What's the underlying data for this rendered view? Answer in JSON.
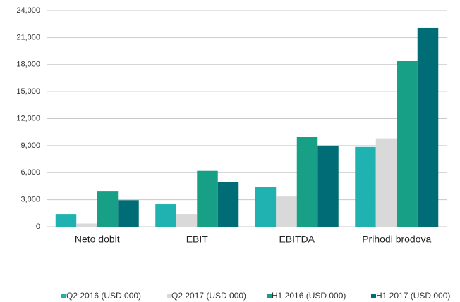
{
  "chart_data": {
    "type": "bar",
    "categories": [
      "Neto dobit",
      "EBIT",
      "EBITDA",
      "Prihodi brodova"
    ],
    "series": [
      {
        "name": "Q2 2016 (USD 000)",
        "color": "#20b2b0",
        "values": [
          1400,
          2500,
          4450,
          8850
        ]
      },
      {
        "name": "Q2 2017 (USD 000)",
        "color": "#d9d9d9",
        "values": [
          350,
          1400,
          3350,
          9800
        ]
      },
      {
        "name": "H1 2016 (USD 000)",
        "color": "#17a085",
        "values": [
          3900,
          6200,
          10000,
          18450
        ]
      },
      {
        "name": "H1 2017 (USD 000)",
        "color": "#006c75",
        "values": [
          2950,
          5000,
          9000,
          22050
        ]
      }
    ],
    "ylim": [
      0,
      24000
    ],
    "yticks": [
      0,
      {
        "value": 3000,
        "label": "3,000"
      },
      {
        "value": 6000,
        "label": "6,000"
      },
      {
        "value": 9000,
        "label": "9,000"
      },
      {
        "value": 12000,
        "label": "12,000"
      },
      {
        "value": 15000,
        "label": "15,000"
      },
      {
        "value": 18000,
        "label": "18,000"
      },
      {
        "value": 21000,
        "label": "21,000"
      },
      {
        "value": 24000,
        "label": "24,000"
      }
    ],
    "grid": true,
    "legend": "bottom"
  }
}
